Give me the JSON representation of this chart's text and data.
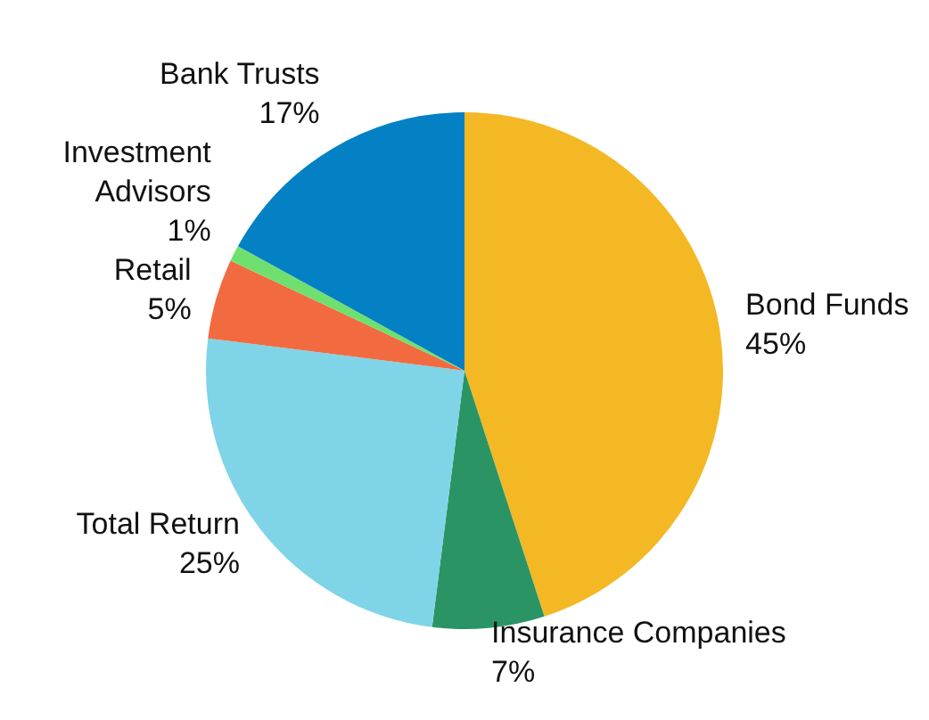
{
  "chart_data": {
    "type": "pie",
    "categories": [
      "Bond Funds",
      "Insurance Companies",
      "Total Return",
      "Retail",
      "Investment Advisors",
      "Bank Trusts"
    ],
    "values": [
      45,
      7,
      25,
      5,
      1,
      17
    ],
    "value_labels": [
      "45%",
      "7%",
      "25%",
      "5%",
      "1%",
      "17%"
    ],
    "colors": [
      "#f4b824",
      "#2a9464",
      "#80d4e8",
      "#f26a3f",
      "#6fe06f",
      "#0381c4"
    ],
    "legend": false
  }
}
